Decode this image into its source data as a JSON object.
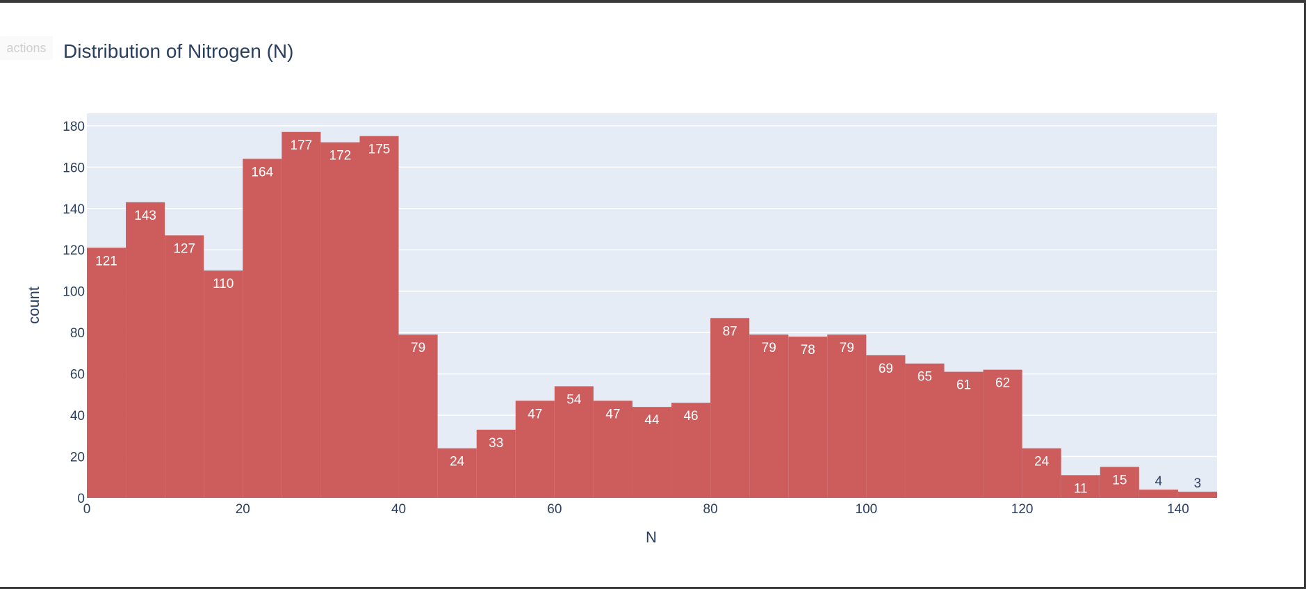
{
  "toolbar": {
    "actions_label": "actions"
  },
  "chart_data": {
    "type": "bar",
    "title": "Distribution of Nitrogen (N)",
    "xlabel": "N",
    "ylabel": "count",
    "bin_width": 5,
    "bin_starts": [
      0,
      5,
      10,
      15,
      20,
      25,
      30,
      35,
      40,
      45,
      50,
      55,
      60,
      65,
      70,
      75,
      80,
      85,
      90,
      95,
      100,
      105,
      110,
      115,
      120,
      125,
      130,
      135,
      140
    ],
    "values": [
      121,
      143,
      127,
      110,
      164,
      177,
      172,
      175,
      79,
      24,
      33,
      47,
      54,
      47,
      44,
      46,
      87,
      79,
      78,
      79,
      69,
      65,
      61,
      62,
      24,
      11,
      15,
      4,
      3
    ],
    "xlim": [
      0,
      145
    ],
    "ylim": [
      0,
      186
    ],
    "xticks": [
      0,
      20,
      40,
      60,
      80,
      100,
      120,
      140
    ],
    "yticks": [
      0,
      20,
      40,
      60,
      80,
      100,
      120,
      140,
      160,
      180
    ],
    "grid": true,
    "colors": {
      "bar": "#CD5C5C",
      "plot_bg": "#E5ECF6",
      "grid": "#ffffff",
      "text": "#2a3f5f",
      "label_inside": "#ffffff"
    }
  }
}
